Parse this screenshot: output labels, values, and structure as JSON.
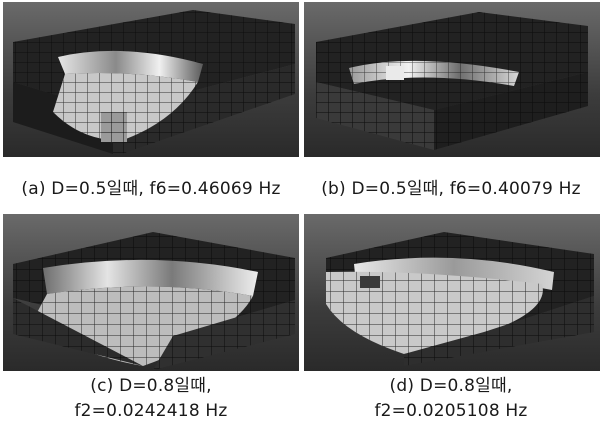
{
  "figures": [
    {
      "id": "a",
      "caption_lines": [
        "(a) D=0.5일때, f6=0.46069 Hz"
      ]
    },
    {
      "id": "b",
      "caption_lines": [
        "(b) D=0.5일때, f6=0.40079 Hz"
      ]
    },
    {
      "id": "c",
      "caption_lines": [
        "(c) D=0.8일때,",
        "f2=0.0242418 Hz"
      ]
    },
    {
      "id": "d",
      "caption_lines": [
        "(d) D=0.8일때,",
        "f2=0.0205108 Hz"
      ]
    }
  ],
  "colors": {
    "background": "#ffffff",
    "panel_top": "#6a6a6a",
    "panel_bottom": "#2a2a2a",
    "mesh_dark": "#1e1e1e",
    "mesh_light": "#d8d8d8",
    "grid_line": "#0d0d0d"
  }
}
